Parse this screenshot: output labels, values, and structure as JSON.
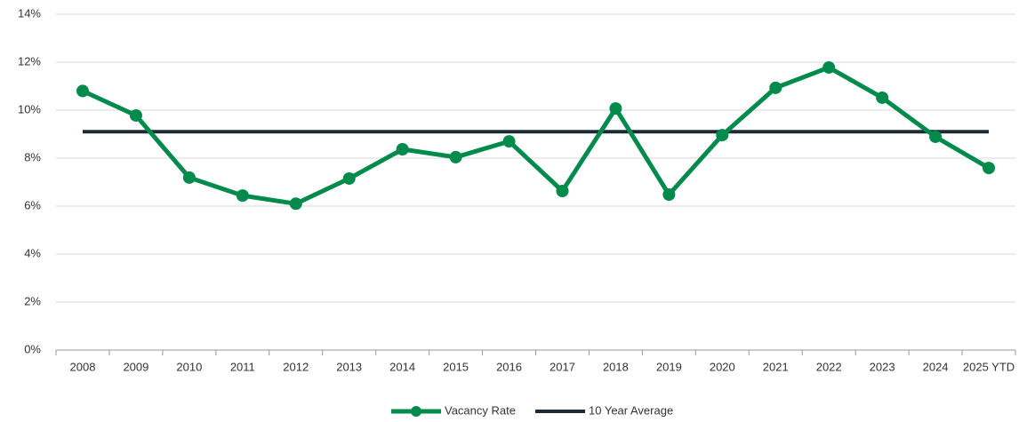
{
  "chart_data": {
    "type": "line",
    "categories": [
      "2008",
      "2009",
      "2010",
      "2011",
      "2012",
      "2013",
      "2014",
      "2015",
      "2016",
      "2017",
      "2018",
      "2019",
      "2020",
      "2021",
      "2022",
      "2023",
      "2024",
      "2025 YTD"
    ],
    "series": [
      {
        "name": "Vacancy Rate",
        "color": "#008a4b",
        "marker": true,
        "values": [
          10.8,
          9.78,
          7.19,
          6.44,
          6.1,
          7.15,
          8.37,
          8.04,
          8.7,
          6.63,
          10.07,
          6.48,
          8.96,
          10.93,
          11.78,
          10.52,
          8.89,
          7.59
        ]
      },
      {
        "name": "10 Year Average",
        "color": "#1c2b36",
        "marker": false,
        "values": [
          9.1,
          9.1,
          9.1,
          9.1,
          9.1,
          9.1,
          9.1,
          9.1,
          9.1,
          9.1,
          9.1,
          9.1,
          9.1,
          9.1,
          9.1,
          9.1,
          9.1,
          9.1
        ]
      }
    ],
    "ylim": [
      0,
      14
    ],
    "yticks": [
      {
        "value": 0,
        "label": "0%"
      },
      {
        "value": 2,
        "label": "2%"
      },
      {
        "value": 4,
        "label": "4%"
      },
      {
        "value": 6,
        "label": "6%"
      },
      {
        "value": 8,
        "label": "8%"
      },
      {
        "value": 10,
        "label": "10%"
      },
      {
        "value": 12,
        "label": "12%"
      },
      {
        "value": 14,
        "label": "14%"
      }
    ],
    "grid": true,
    "legend": "bottom"
  }
}
